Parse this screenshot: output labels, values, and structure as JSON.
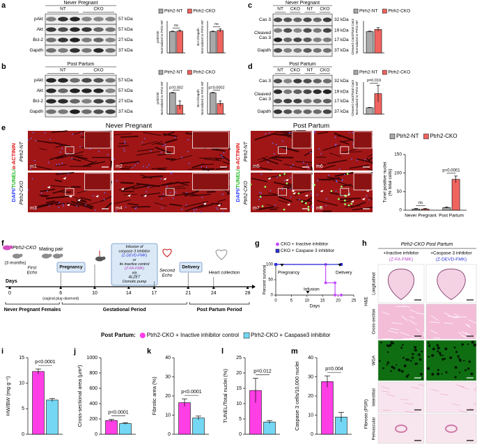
{
  "panel_labels": [
    "a",
    "b",
    "c",
    "d",
    "e",
    "f",
    "g",
    "h",
    "i",
    "j",
    "k",
    "l",
    "m"
  ],
  "blots": [
    {
      "title": "Never Pregnant",
      "lanes": [
        "NT",
        "CKO"
      ],
      "rows": [
        {
          "name": "pAkt",
          "kda": [
            "57 kDa"
          ]
        },
        {
          "name": "Akt",
          "kda": [
            "57 kDa"
          ]
        },
        {
          "name": "Bcl-2",
          "kda": [
            "27 kDa"
          ]
        },
        {
          "name": "Gapdh",
          "kda": [
            "37 kDa"
          ]
        }
      ]
    },
    {
      "title": "Post Partum",
      "lanes": [
        "NT",
        "CKO"
      ],
      "rows": [
        {
          "name": "pAkt",
          "kda": [
            "57 kDa"
          ]
        },
        {
          "name": "Akt",
          "kda": [
            "57 kDa"
          ]
        },
        {
          "name": "Bcl-2",
          "kda": [
            "27 kDa"
          ]
        },
        {
          "name": "Gapdh",
          "kda": [
            "37 kDa"
          ]
        }
      ]
    },
    {
      "title": "Never Pregnant",
      "lanes": [
        "NT",
        "CKO",
        "NT",
        "CKO"
      ],
      "rows": [
        {
          "name": "Cas 3",
          "kda": [
            "32 kDa"
          ]
        },
        {
          "name": [
            "Cleaved",
            "Cas 3"
          ],
          "kda": [
            "19 kDa",
            "17 kDa"
          ]
        },
        {
          "name": "Gapdh",
          "kda": [
            "37 kDa"
          ]
        }
      ]
    },
    {
      "title": "Post Partum",
      "lanes": [
        "NT",
        "CKO",
        "NT",
        "CKO"
      ],
      "rows": [
        {
          "name": "Cas 3",
          "kda": [
            "32 kDa"
          ]
        },
        {
          "name": [
            "Cleaved",
            "Cas 3"
          ],
          "kda": [
            "19 kDa",
            "17 kDa"
          ]
        },
        {
          "name": "Gapdh",
          "kda": [
            "37 kDa"
          ]
        }
      ]
    }
  ],
  "tunel_images": {
    "groups": [
      "Never Pregnant",
      "Post Partum"
    ],
    "stain": [
      "DAPI/",
      "TUNEL/",
      "α-ACTININ"
    ],
    "genotypes": [
      "Ptrh2-NT",
      "Ptrh2-CKO"
    ],
    "tiles": [
      "m1",
      "m2",
      "m3",
      "m4",
      "m5",
      "m6",
      "m7",
      "m8"
    ]
  },
  "timeline": {
    "mouse": "Ptrh2-CKO",
    "age": "(3 months)",
    "mating": "Mating pair",
    "first_echo": [
      "First",
      "Echo"
    ],
    "pregnancy": "Pregnancy",
    "infusion": [
      "Infusion of",
      "caspase 3 inhibitor",
      "(Z-DEVD-FMK)",
      "or",
      "its inactive control",
      "(Z-FA-FMK)",
      "via",
      "ALZET",
      "Osmotic pump"
    ],
    "second_echo": [
      "Second",
      "Echo"
    ],
    "delivery": "Delivery",
    "heart": "Heart collection",
    "axis_label": "Days",
    "days": [
      0,
      6,
      10,
      14,
      17,
      21,
      24,
      28
    ],
    "plug": "(vaginal plug observed)",
    "periods": [
      "Never Pregnant Females",
      "Gestational Period",
      "Post Partum Period"
    ]
  },
  "histology": {
    "title": "Ptrh2-CKO Post Partum",
    "columns": [
      {
        "label": "+Inactive inhibitor",
        "drug": "(Z-FA-FMK)"
      },
      {
        "label": "+Caspase 3 inhibitor",
        "drug": "(Z-DEVD-FMK)"
      }
    ],
    "rows": [
      "Longitudinal",
      "Cross-section",
      "WGA",
      "Interstitial",
      "Perivascular"
    ],
    "groups": [
      "H&E",
      "Fibrosis (PSR)"
    ]
  },
  "chart_data": [
    {
      "type": "bar",
      "ylabel": [
        "pAkt/Akt",
        "Normalized to Ptrh2-NT"
      ],
      "ylim": [
        0,
        1.5
      ],
      "series": [
        {
          "name": "Ptrh2-NT",
          "color": "#a9a9a9",
          "values": [
            1
          ],
          "errors": [
            0.02
          ]
        },
        {
          "name": "Ptrh2-CKO",
          "color": "#f0645f",
          "values": [
            1.02
          ],
          "errors": [
            0.05
          ]
        }
      ],
      "annotations": [
        "ns"
      ]
    },
    {
      "type": "bar",
      "ylabel": [
        "Bcl-2/Gapdh",
        "Normalized to Ptrh2-NT"
      ],
      "ylim": [
        0,
        1.5
      ],
      "series": [
        {
          "color": "#a9a9a9",
          "values": [
            1
          ],
          "errors": [
            0.02
          ]
        },
        {
          "color": "#f0645f",
          "values": [
            1.05
          ],
          "errors": [
            0.08
          ]
        }
      ],
      "annotations": [
        "ns"
      ]
    },
    {
      "type": "bar",
      "ylabel": [
        "pAkt/Akt",
        "Normalized to Ptrh2-NT"
      ],
      "ylim": [
        0,
        1.5
      ],
      "series": [
        {
          "name": "Ptrh2-NT",
          "color": "#a9a9a9",
          "values": [
            1
          ],
          "errors": [
            0.02
          ]
        },
        {
          "name": "Ptrh2-CKO",
          "color": "#f0645f",
          "values": [
            0.42
          ],
          "errors": [
            0.2
          ]
        }
      ],
      "annotations": [
        "p=0.002"
      ]
    },
    {
      "type": "bar",
      "ylabel": [
        "Bcl-2/Gapdh",
        "Normalized to Ptrh2-NT"
      ],
      "ylim": [
        0,
        1.5
      ],
      "series": [
        {
          "color": "#a9a9a9",
          "values": [
            1
          ],
          "errors": [
            0.02
          ]
        },
        {
          "color": "#f0645f",
          "values": [
            0.5
          ],
          "errors": [
            0.12
          ]
        }
      ],
      "annotations": [
        "p=0.0002"
      ]
    },
    {
      "type": "bar",
      "ylabel": [
        "Cleaved Cas3/Total Cas3",
        "Normalized to Ptrh2-NT"
      ],
      "ylim": [
        0,
        1.5
      ],
      "series": [
        {
          "name": "Ptrh2-NT",
          "color": "#a9a9a9",
          "values": [
            1
          ],
          "errors": [
            0.02
          ]
        },
        {
          "name": "Ptrh2-CKO",
          "color": "#f0645f",
          "values": [
            1.1
          ],
          "errors": [
            0.08
          ]
        }
      ]
    },
    {
      "type": "bar",
      "ylabel": [
        "Cleaved Cas3/Total Cas3",
        "Normalized to Ptrh2-NT"
      ],
      "ylim": [
        0,
        5
      ],
      "series": [
        {
          "name": "Ptrh2-NT",
          "color": "#a9a9a9",
          "values": [
            1
          ],
          "errors": [
            0.05
          ]
        },
        {
          "name": "Ptrh2-CKO",
          "color": "#f0645f",
          "values": [
            3.2
          ],
          "errors": [
            1.3
          ]
        }
      ],
      "annotations": [
        "p=0.019"
      ]
    },
    {
      "type": "bar",
      "ylabel": [
        "Tunel positive nuclei",
        "(% total cells)"
      ],
      "categories": [
        "Never Pregnant",
        "Post Partum"
      ],
      "ylim": [
        0,
        150
      ],
      "yticks": [
        0,
        50,
        100,
        150
      ],
      "series": [
        {
          "name": "Ptrh2-NT",
          "color": "#a9a9a9",
          "values": [
            3,
            7
          ],
          "errors": [
            1.5,
            1.5
          ]
        },
        {
          "name": "Ptrh2-CKO",
          "color": "#f0645f",
          "values": [
            3,
            83
          ],
          "errors": [
            1.5,
            9
          ]
        }
      ],
      "annotations": [
        "ns",
        "p=0.0001"
      ]
    },
    {
      "type": "line",
      "xlabel": "Days",
      "ylabel": "Percent survival",
      "xlim": [
        0,
        25
      ],
      "ylim": [
        0,
        100
      ],
      "xticks": [
        0,
        5,
        10,
        15,
        20,
        25
      ],
      "yticks": [
        0,
        50,
        100
      ],
      "series": [
        {
          "name": "CKO + Inactive inhibitor",
          "color": "#c44dff",
          "marker": "circle",
          "x": [
            0,
            16,
            16,
            19,
            19,
            21
          ],
          "values": [
            100,
            100,
            40,
            40,
            0,
            0
          ]
        },
        {
          "name": "CKO + Caspase 3 inhibitor",
          "color": "#2b35d8",
          "marker": "square",
          "x": [
            0,
            21
          ],
          "values": [
            100,
            100
          ]
        }
      ],
      "annotations": [
        "Pregnancy",
        "Infusion",
        "Delivery"
      ]
    },
    {
      "type": "bar",
      "legend_title": "Post Partum:",
      "ylabel": "HW/BW (mg g⁻¹)",
      "ylim": [
        0,
        15
      ],
      "yticks": [
        0,
        5,
        10,
        15
      ],
      "series": [
        {
          "name": "Ptrh2-CKO + Inactive inhibitor control",
          "color": "#ff3ee6",
          "marker": "circle",
          "values": [
            12.3
          ],
          "errors": [
            0.5
          ]
        },
        {
          "name": "Ptrh2-CKO + Caspase3 inhibitor",
          "color": "#74d7f3",
          "marker": "square",
          "values": [
            6.7
          ],
          "errors": [
            0.3
          ]
        }
      ],
      "annotations": [
        "p<0.0001"
      ]
    },
    {
      "type": "bar",
      "ylabel": "Cross-sectional area (µm²)",
      "ylim": [
        0,
        1000
      ],
      "yticks": [
        0,
        200,
        400,
        600,
        800,
        1000
      ],
      "series": [
        {
          "color": "#ff3ee6",
          "values": [
            180
          ],
          "errors": [
            15
          ]
        },
        {
          "color": "#74d7f3",
          "values": [
            140
          ],
          "errors": [
            10
          ]
        }
      ],
      "annotations": [
        "p<0.0001"
      ]
    },
    {
      "type": "bar",
      "ylabel": "Fibrotic area (%)",
      "ylim": [
        0,
        40
      ],
      "yticks": [
        0,
        10,
        20,
        30,
        40
      ],
      "series": [
        {
          "color": "#ff3ee6",
          "values": [
            16.5
          ],
          "errors": [
            2
          ]
        },
        {
          "color": "#74d7f3",
          "values": [
            8.5
          ],
          "errors": [
            1
          ]
        }
      ],
      "annotations": [
        "p<0.0001"
      ]
    },
    {
      "type": "bar",
      "ylabel": "TUNEL/Total nuclei (%)",
      "ylim": [
        0,
        25
      ],
      "yticks": [
        0,
        5,
        10,
        15,
        20,
        25
      ],
      "series": [
        {
          "color": "#ff3ee6",
          "values": [
            14.3
          ],
          "errors": [
            4
          ]
        },
        {
          "color": "#74d7f3",
          "values": [
            4
          ],
          "errors": [
            0.5
          ]
        }
      ],
      "annotations": [
        "p=0.012"
      ]
    },
    {
      "type": "bar",
      "ylabel": "Caspase 3 cells/10,000 nuclei",
      "ylim": [
        0,
        40
      ],
      "yticks": [
        0,
        10,
        20,
        30,
        40
      ],
      "series": [
        {
          "color": "#ff3ee6",
          "values": [
            27.5
          ],
          "errors": [
            3
          ]
        },
        {
          "color": "#74d7f3",
          "values": [
            9
          ],
          "errors": [
            2.5
          ]
        }
      ],
      "annotations": [
        "p=0.004"
      ]
    }
  ]
}
